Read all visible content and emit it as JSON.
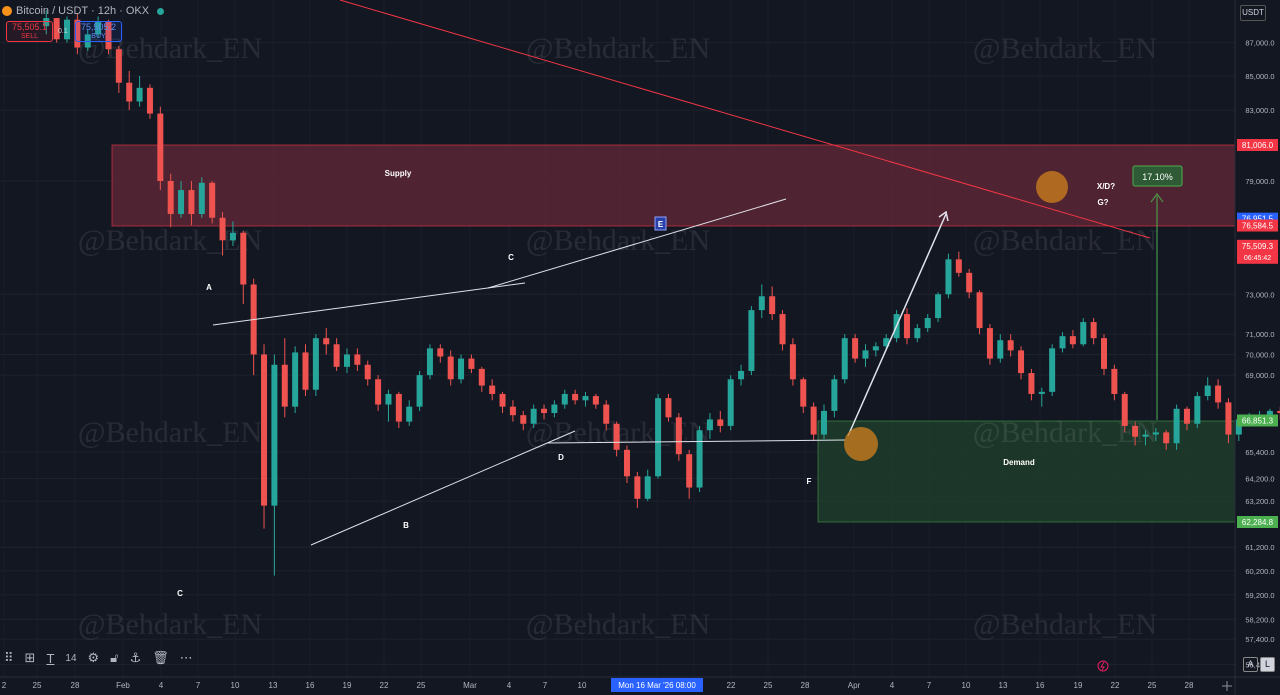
{
  "header": {
    "symbol_title": "Bitcoin / USDT · 12h · OKX",
    "sell_price": "75,505.1",
    "sell_label": "SELL",
    "spread": "0.1",
    "buy_price": "75,505.2",
    "buy_label": "BUY",
    "currency": "USDT"
  },
  "watermark": "@Behdark_EN",
  "toolbar": {
    "items": [
      "drag-handle-icon",
      "layout-icon",
      "text-tool-icon",
      "font-size",
      "settings-icon",
      "lock-icon",
      "anchor-icon",
      "trash-icon",
      "more-icon"
    ],
    "font_size": "14"
  },
  "bottom_right": {
    "auto_label": "A",
    "log_label": "L"
  },
  "chart_data": {
    "type": "candlestick",
    "symbol": "Bitcoin / USDT",
    "interval": "12h",
    "exchange": "OKX",
    "y_axis": {
      "ticks": [
        "87,000.0",
        "85,000.0",
        "83,000.0",
        "79,000.0",
        "73,000.0",
        "71,000.0",
        "70,000.0",
        "69,000.0",
        "65,400.0",
        "64,200.0",
        "63,200.0",
        "61,200.0",
        "60,200.0",
        "59,200.0",
        "58,200.0",
        "57,400.0",
        "56,400.0"
      ],
      "scale": "log",
      "ylim": [
        56000,
        89500
      ]
    },
    "x_axis": {
      "ticks": [
        "2",
        "25",
        "28",
        "Feb",
        "4",
        "7",
        "10",
        "13",
        "16",
        "19",
        "22",
        "25",
        "Mar",
        "4",
        "7",
        "10",
        "13",
        "16",
        "19",
        "22",
        "25",
        "28",
        "Apr",
        "4",
        "7",
        "10",
        "13",
        "16",
        "19",
        "22",
        "25",
        "28"
      ],
      "crosshair_label": "Mon 16 Mar '26  08:00"
    },
    "price_labels": [
      {
        "value": 81006.0,
        "text": "81,006.0",
        "color": "#f23645"
      },
      {
        "value": 76951.5,
        "text": "76,951.5",
        "color": "#2962ff"
      },
      {
        "value": 76584.5,
        "text": "76,584.5",
        "color": "#f23645"
      },
      {
        "value": 75509.3,
        "text": "75,509.3",
        "sub": "06:45:42",
        "color": "#f23645"
      },
      {
        "value": 66851.3,
        "text": "66,851.3",
        "color": "#4caf50"
      },
      {
        "value": 62284.8,
        "text": "62,284.8",
        "color": "#4caf50"
      }
    ],
    "zones": [
      {
        "label": "Supply",
        "top": 81006.0,
        "bottom": 76584.5,
        "color": "#f23645"
      },
      {
        "label": "Demand",
        "top": 66851.3,
        "bottom": 62284.8,
        "color": "#4caf50"
      }
    ],
    "pattern_labels": [
      "A",
      "B",
      "C",
      "C",
      "D",
      "E",
      "F",
      "X/D?",
      "G?"
    ],
    "measure_label": "17.10%",
    "candles": [
      [
        98.0,
        88000,
        89000,
        87500,
        88500
      ],
      [
        99.0,
        88500,
        88500,
        87000,
        87200
      ],
      [
        100.0,
        87200,
        88600,
        87000,
        88400
      ],
      [
        101.0,
        88400,
        88800,
        86300,
        86700
      ],
      [
        102.0,
        86700,
        87800,
        86500,
        87500
      ],
      [
        103.0,
        87500,
        88600,
        87300,
        88300
      ],
      [
        104.0,
        88300,
        88400,
        86300,
        86600
      ],
      [
        105.0,
        86600,
        86800,
        84000,
        84600
      ],
      [
        106.0,
        84600,
        85300,
        83000,
        83500
      ],
      [
        107.0,
        83500,
        85000,
        83200,
        84300
      ],
      [
        108.0,
        84300,
        84500,
        82500,
        82800
      ],
      [
        109.0,
        82800,
        83200,
        78500,
        79000
      ],
      [
        110.0,
        79000,
        79400,
        76500,
        77200
      ],
      [
        111.0,
        77200,
        79000,
        77000,
        78500
      ],
      [
        112.0,
        78500,
        79000,
        76600,
        77200
      ],
      [
        113.0,
        77200,
        79200,
        77000,
        78900
      ],
      [
        114.0,
        78900,
        79000,
        76700,
        77000
      ],
      [
        115.0,
        77000,
        77300,
        75000,
        75800
      ],
      [
        116.0,
        75800,
        76800,
        75500,
        76200
      ],
      [
        117.0,
        76200,
        76300,
        72500,
        73500
      ],
      [
        118.0,
        73500,
        73800,
        69000,
        70000
      ],
      [
        119.0,
        70000,
        70500,
        62000,
        63000
      ],
      [
        120.0,
        63000,
        70000,
        60000,
        69500
      ],
      [
        121.0,
        69500,
        70800,
        67000,
        67500
      ],
      [
        122.0,
        67500,
        70400,
        67200,
        70100
      ],
      [
        123.0,
        70100,
        70500,
        68000,
        68300
      ],
      [
        124.0,
        68300,
        71000,
        68000,
        70800
      ],
      [
        125.0,
        70800,
        71300,
        70000,
        70500
      ],
      [
        126.0,
        70500,
        70800,
        69200,
        69400
      ],
      [
        127.0,
        69400,
        70300,
        69100,
        70000
      ],
      [
        128.0,
        70000,
        70300,
        69200,
        69500
      ],
      [
        129.0,
        69500,
        69700,
        68500,
        68800
      ],
      [
        130.0,
        68800,
        69000,
        67300,
        67600
      ],
      [
        131.0,
        67600,
        68300,
        66800,
        68100
      ],
      [
        132.0,
        68100,
        68200,
        66500,
        66800
      ],
      [
        133.0,
        66800,
        67800,
        66600,
        67500
      ],
      [
        134.0,
        67500,
        69200,
        67300,
        69000
      ],
      [
        135.0,
        69000,
        70500,
        68800,
        70300
      ],
      [
        136.0,
        70300,
        70500,
        69600,
        69900
      ],
      [
        137.0,
        69900,
        70200,
        68500,
        68800
      ],
      [
        138.0,
        68800,
        70000,
        68600,
        69800
      ],
      [
        139.0,
        69800,
        70000,
        69100,
        69300
      ],
      [
        140.0,
        69300,
        69400,
        68200,
        68500
      ],
      [
        141.0,
        68500,
        68800,
        67800,
        68100
      ],
      [
        142.0,
        68100,
        68200,
        67200,
        67500
      ],
      [
        143.0,
        67500,
        67800,
        66800,
        67100
      ],
      [
        144.0,
        67100,
        67300,
        66400,
        66700
      ],
      [
        145.0,
        66700,
        67600,
        66500,
        67400
      ],
      [
        146.0,
        67400,
        67600,
        66900,
        67200
      ],
      [
        147.0,
        67200,
        67800,
        67000,
        67600
      ],
      [
        148.0,
        67600,
        68300,
        67400,
        68100
      ],
      [
        149.0,
        68100,
        68300,
        67600,
        67800
      ],
      [
        150.0,
        67800,
        68200,
        67500,
        68000
      ],
      [
        151.0,
        68000,
        68100,
        67400,
        67600
      ],
      [
        152.0,
        67600,
        67800,
        66400,
        66700
      ],
      [
        153.0,
        66700,
        66800,
        65200,
        65500
      ],
      [
        154.0,
        65500,
        65700,
        64000,
        64300
      ],
      [
        155.0,
        64300,
        64500,
        62900,
        63300
      ],
      [
        156.0,
        63300,
        64600,
        63200,
        64300
      ],
      [
        157.0,
        64300,
        68100,
        64200,
        67900
      ],
      [
        158.0,
        67900,
        68100,
        66800,
        67000
      ],
      [
        159.0,
        67000,
        67200,
        65000,
        65300
      ],
      [
        160.0,
        65300,
        65500,
        63300,
        63800
      ],
      [
        161.0,
        63800,
        66600,
        63600,
        66400
      ],
      [
        162.0,
        66400,
        67200,
        66000,
        66900
      ],
      [
        163.0,
        66900,
        67300,
        66300,
        66600
      ],
      [
        164.0,
        66600,
        69000,
        66400,
        68800
      ],
      [
        165.0,
        68800,
        69500,
        68500,
        69200
      ],
      [
        166.0,
        69200,
        72400,
        69000,
        72200
      ],
      [
        167.0,
        72200,
        73500,
        71800,
        72900
      ],
      [
        168.0,
        72900,
        73400,
        71700,
        72000
      ],
      [
        169.0,
        72000,
        72200,
        70200,
        70500
      ],
      [
        170.0,
        70500,
        70800,
        68500,
        68800
      ],
      [
        171.0,
        68800,
        68900,
        67200,
        67500
      ],
      [
        172.0,
        67500,
        67700,
        65900,
        66200
      ],
      [
        173.0,
        66200,
        67600,
        66000,
        67300
      ],
      [
        174.0,
        67300,
        69000,
        67000,
        68800
      ],
      [
        175.0,
        68800,
        71000,
        68600,
        70800
      ],
      [
        176.0,
        70800,
        71000,
        69600,
        69800
      ],
      [
        177.0,
        69800,
        70500,
        69400,
        70200
      ],
      [
        178.0,
        70200,
        70600,
        69900,
        70400
      ],
      [
        179.0,
        70400,
        71000,
        70200,
        70800
      ],
      [
        180.0,
        70800,
        72200,
        70600,
        72000
      ],
      [
        181.0,
        72000,
        72300,
        70500,
        70800
      ],
      [
        182.0,
        70800,
        71500,
        70600,
        71300
      ],
      [
        183.0,
        71300,
        72000,
        71100,
        71800
      ],
      [
        184.0,
        71800,
        73100,
        71600,
        73000
      ],
      [
        185.0,
        73000,
        75100,
        72800,
        74800
      ],
      [
        186.0,
        74800,
        75200,
        73900,
        74100
      ],
      [
        187.0,
        74100,
        74300,
        72800,
        73100
      ],
      [
        188.0,
        73100,
        73200,
        71000,
        71300
      ],
      [
        189.0,
        71300,
        71500,
        69500,
        69800
      ],
      [
        190.0,
        69800,
        71000,
        69600,
        70700
      ],
      [
        191.0,
        70700,
        71000,
        69900,
        70200
      ],
      [
        192.0,
        70200,
        70400,
        68800,
        69100
      ],
      [
        193.0,
        69100,
        69300,
        67800,
        68100
      ],
      [
        194.0,
        68100,
        68400,
        67500,
        68200
      ],
      [
        195.0,
        68200,
        70500,
        68000,
        70300
      ],
      [
        196.0,
        70300,
        71100,
        70100,
        70900
      ],
      [
        197.0,
        70900,
        71200,
        70300,
        70500
      ],
      [
        198.0,
        70500,
        71800,
        70400,
        71600
      ],
      [
        199.0,
        71600,
        71800,
        70500,
        70800
      ],
      [
        200.0,
        70800,
        71000,
        69000,
        69300
      ],
      [
        201.0,
        69300,
        69500,
        67800,
        68100
      ],
      [
        202.0,
        68100,
        68200,
        66300,
        66600
      ],
      [
        203.0,
        66600,
        66800,
        65700,
        66100
      ],
      [
        204.0,
        66100,
        66400,
        65700,
        66200
      ],
      [
        205.0,
        66200,
        66500,
        65900,
        66300
      ],
      [
        206.0,
        66300,
        66400,
        65500,
        65800
      ],
      [
        207.0,
        65800,
        67600,
        65500,
        67400
      ],
      [
        208.0,
        67400,
        67500,
        66400,
        66700
      ],
      [
        209.0,
        66700,
        68200,
        66500,
        68000
      ],
      [
        210.0,
        68000,
        68900,
        67800,
        68500
      ],
      [
        211.0,
        68500,
        68800,
        67400,
        67700
      ],
      [
        212.0,
        67700,
        67900,
        65800,
        66200
      ],
      [
        213.0,
        66200,
        67100,
        65900,
        66900
      ],
      [
        214.0,
        66900,
        67200,
        66600,
        67000
      ],
      [
        215.0,
        67000,
        67300,
        66800,
        67100
      ],
      [
        216.0,
        67100,
        67400,
        66900,
        67300
      ],
      [
        217.0,
        67300,
        67500,
        66900,
        67200
      ],
      [
        218.0,
        67200,
        67400,
        66900,
        67100
      ],
      [
        219.0,
        67100,
        69300,
        67000,
        69000
      ],
      [
        220.0,
        69000,
        69500,
        68600,
        69200
      ],
      [
        221.0,
        69200,
        69400,
        67800,
        68100
      ],
      [
        222.0,
        68100,
        71500,
        67900,
        71200
      ],
      [
        223.0,
        71200,
        71800,
        70800,
        71400
      ],
      [
        224.0,
        71400,
        71600,
        70300,
        70600
      ],
      [
        225.0,
        70600,
        71500,
        70400,
        71300
      ],
      [
        226.0,
        71300,
        72300,
        71100,
        72000
      ],
      [
        227.0,
        72000,
        72600,
        71800,
        72300
      ],
      [
        228.0,
        72300,
        72500,
        71800,
        72400
      ],
      [
        229.0,
        72400,
        72800,
        72000,
        72200
      ],
      [
        230.0,
        72200,
        72400,
        70400,
        70600
      ],
      [
        231.0,
        70600,
        70900,
        70300,
        70700
      ],
      [
        232.0,
        70700,
        74000,
        70500,
        73800
      ],
      [
        233.0,
        73800,
        75000,
        73500,
        74700
      ],
      [
        234.0,
        74700,
        75100,
        73800,
        74100
      ],
      [
        235.0,
        74100,
        75500,
        73900,
        75200
      ],
      [
        236.0,
        75200,
        75400,
        74000,
        74300
      ],
      [
        237.0,
        74300,
        75400,
        74000,
        75200
      ],
      [
        238.0,
        75200,
        75400,
        74500,
        74800
      ],
      [
        239.0,
        74800,
        76100,
        74600,
        75800
      ],
      [
        240.0,
        75800,
        77200,
        75600,
        77000
      ],
      [
        241.0,
        77000,
        77900,
        75800,
        76000
      ],
      [
        242.0,
        76000,
        76300,
        75500,
        75700
      ],
      [
        243.0,
        75700,
        76000,
        75300,
        75600
      ],
      [
        244.0,
        75600,
        75800,
        73600,
        74000
      ],
      [
        245.0,
        74000,
        75800,
        73800,
        75500
      ],
      [
        246.0,
        75500,
        76300,
        75300,
        76100
      ],
      [
        247.0,
        76100,
        77000,
        75800,
        75700
      ],
      [
        248.0,
        75700,
        76600,
        75300,
        76500
      ]
    ]
  }
}
